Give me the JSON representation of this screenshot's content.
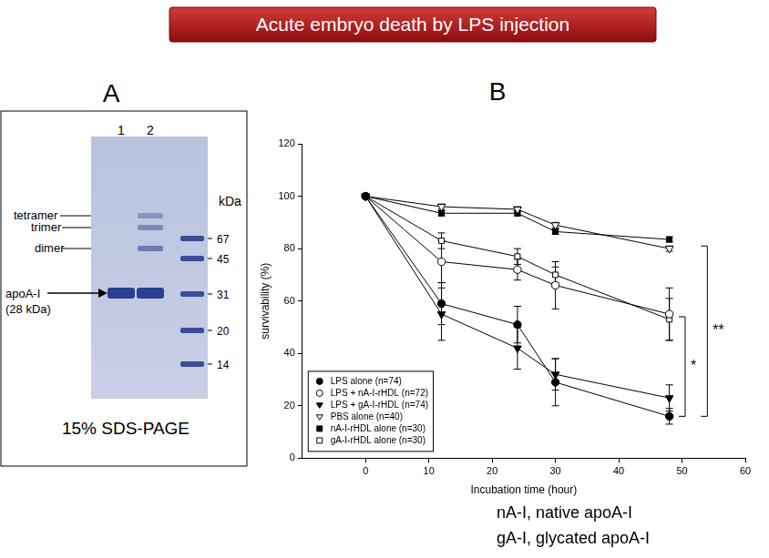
{
  "header": {
    "title": "Acute embryo death by LPS injection"
  },
  "panel_a": {
    "label": "A",
    "lanes": [
      "1",
      "2"
    ],
    "bands": [
      "tetramer",
      "trimer",
      "dimer"
    ],
    "main_band": [
      "apoA-I",
      "(28 kDa)"
    ],
    "marker_unit": "kDa",
    "markers": [
      67,
      45,
      31,
      20,
      14
    ],
    "caption": "15% SDS-PAGE"
  },
  "panel_b": {
    "label": "B",
    "footnotes": [
      "nA-I, native apoA-I",
      "gA-I, glycated apoA-I"
    ]
  },
  "chart_data": {
    "type": "line",
    "x_label": "Incubation time (hour)",
    "y_label": "survivability (%)",
    "x": [
      0,
      12,
      24,
      30,
      48
    ],
    "series": [
      {
        "name": "LPS alone (n=74)",
        "color": "#000000",
        "marker": "filled_circle",
        "values": [
          100,
          59,
          51,
          29,
          16
        ],
        "errors": [
          0,
          8,
          7,
          9,
          3
        ]
      },
      {
        "name": "LPS + nA-I-rHDL (n=72)",
        "color": "#000000",
        "marker": "open_circle",
        "values": [
          100,
          75,
          72,
          66,
          55
        ],
        "errors": [
          0,
          8,
          4,
          9,
          10
        ]
      },
      {
        "name": "LPS + gA-I-rHDL (n=74)",
        "color": "#000000",
        "marker": "filled_triangle_down",
        "values": [
          100,
          55,
          42,
          32,
          23
        ],
        "errors": [
          0,
          10,
          8,
          6,
          5
        ]
      },
      {
        "name": "PBS alone (n=40)",
        "color": "#000000",
        "marker": "open_triangle_down",
        "values": [
          100,
          96,
          95,
          89,
          80
        ],
        "errors": [
          0,
          1,
          1,
          1,
          1
        ]
      },
      {
        "name": "nA-I-rHDL alone (n=30)",
        "color": "#000000",
        "marker": "filled_square",
        "values": [
          100,
          93.5,
          93.5,
          86.5,
          83.5
        ],
        "errors": [
          0,
          1,
          1,
          1,
          1
        ]
      },
      {
        "name": "gA-I-rHDL alone (n=30)",
        "color": "#000000",
        "marker": "open_square",
        "values": [
          100,
          83,
          77,
          70,
          53
        ],
        "errors": [
          0,
          3,
          3,
          3,
          8
        ]
      }
    ],
    "xlim": [
      -10,
      60
    ],
    "xticks": [
      0,
      10,
      20,
      30,
      40,
      50,
      60
    ],
    "ylim": [
      0,
      120
    ],
    "yticks": [
      0,
      20,
      40,
      60,
      80,
      100,
      120
    ],
    "grid": false,
    "legend": "lower left",
    "annotations": [
      {
        "text": "*",
        "x": 50.5,
        "y": [
          16,
          54
        ]
      },
      {
        "text": "**",
        "x": 54,
        "y": [
          16,
          81
        ]
      }
    ]
  }
}
